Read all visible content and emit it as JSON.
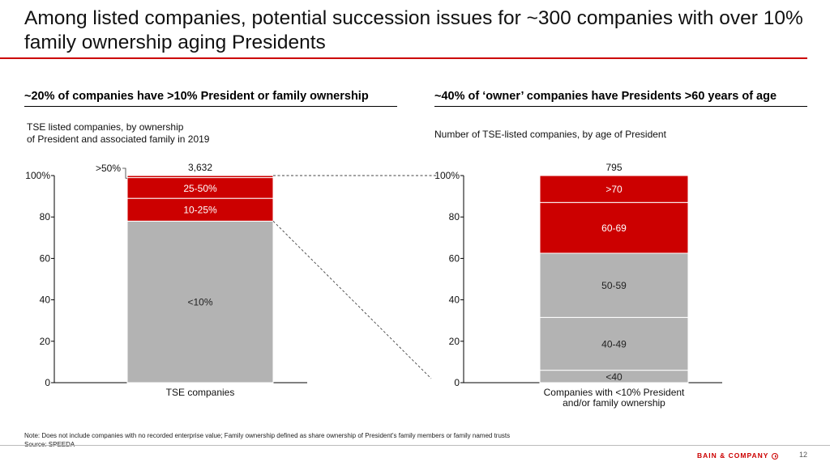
{
  "title": "Among listed companies, potential succession issues for ~300 companies with over 10% family ownership aging Presidents",
  "left_section": {
    "header": "~20% of companies have >10% President or family ownership",
    "subtitle_line1": "TSE listed companies, by ownership",
    "subtitle_line2": "of President and associated family in 2019"
  },
  "right_section": {
    "header": "~40% of ‘owner’ companies have Presidents >60 years of age",
    "subtitle": "Number of TSE-listed companies, by age of President"
  },
  "chart_data": [
    {
      "type": "bar",
      "stacked": true,
      "categories": [
        "TSE companies"
      ],
      "total_label": "3,632",
      "ylim": [
        0,
        100
      ],
      "yticks": [
        "0",
        "20",
        "40",
        "60",
        "80",
        "100%"
      ],
      "segments": [
        {
          "name": "<10%",
          "value": 78,
          "color": "#b3b3b3"
        },
        {
          "name": "10-25%",
          "value": 11,
          "color": "#cc0000"
        },
        {
          "name": "25-50%",
          "value": 10,
          "color": "#cc0000"
        },
        {
          "name": ">50%",
          "value": 1,
          "color": "#cc0000",
          "callout": true
        }
      ]
    },
    {
      "type": "bar",
      "stacked": true,
      "categories": [
        "Companies with <10% President and/or family ownership"
      ],
      "category_label_lines": [
        "Companies with <10% President",
        "and/or family ownership"
      ],
      "total_label": "795",
      "ylim": [
        0,
        100
      ],
      "yticks": [
        "0",
        "20",
        "40",
        "60",
        "80",
        "100%"
      ],
      "segments": [
        {
          "name": "<40",
          "value": 6,
          "color": "#b3b3b3"
        },
        {
          "name": "40-49",
          "value": 25.5,
          "color": "#b3b3b3"
        },
        {
          "name": "50-59",
          "value": 31,
          "color": "#b3b3b3"
        },
        {
          "name": "60-69",
          "value": 24.5,
          "color": "#cc0000"
        },
        {
          "name": ">70",
          "value": 13,
          "color": "#cc0000"
        }
      ]
    }
  ],
  "note": "Note: Does not include companies with no recorded enterprise value; Family ownership defined as share ownership of President's family members or family named trusts",
  "source": "Source: SPEEDA",
  "brand": "BAIN & COMPANY",
  "page_number": "12"
}
